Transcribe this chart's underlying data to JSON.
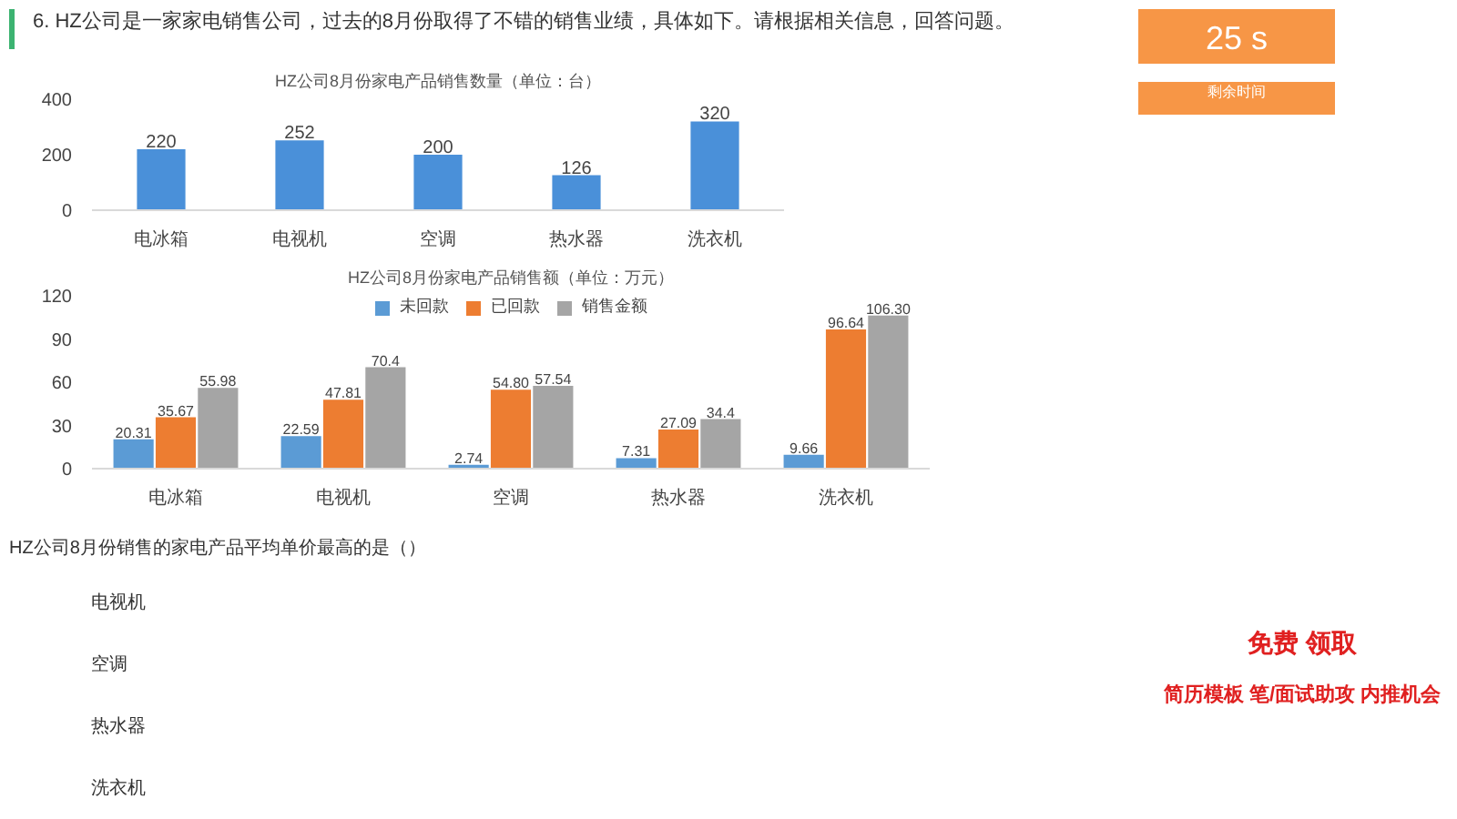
{
  "chart_data": [
    {
      "type": "bar",
      "title": "HZ公司8月份家电产品销售数量（单位：台）",
      "categories": [
        "电冰箱",
        "电视机",
        "空调",
        "热水器",
        "洗衣机"
      ],
      "values": [
        220,
        252,
        200,
        126,
        320
      ],
      "color": "#4a90d9",
      "ylim": [
        0,
        400
      ],
      "yticks": [
        0,
        200,
        400
      ],
      "grid": false,
      "data_labels": true,
      "annotations": [
        "6. HZ公司是一家家电销售公司，过去的8月份取得了不错的销售业绩，具体如下。请根据相关信息，回答问题。"
      ]
    },
    {
      "type": "bar",
      "title": "HZ公司8月份家电产品销售额（单位：万元）",
      "categories": [
        "电冰箱",
        "电视机",
        "空调",
        "热水器",
        "洗衣机"
      ],
      "ylim": [
        0,
        120
      ],
      "yticks": [
        0,
        30,
        60,
        90,
        120
      ],
      "grid": false,
      "legend": "top",
      "series": [
        {
          "name": "未回款",
          "color": "#5b9bd5",
          "values": [
            20.31,
            22.59,
            2.74,
            7.31,
            9.66
          ],
          "value_labels": [
            "20.31",
            "22.59",
            "2.74",
            "7.31",
            "9.66"
          ]
        },
        {
          "name": "已回款",
          "color": "#ed7d31",
          "values": [
            35.67,
            47.81,
            54.8,
            27.09,
            96.64
          ],
          "value_labels": [
            "35.67",
            "47.81",
            "54.80",
            "27.09",
            "96.64"
          ]
        },
        {
          "name": "销售金额",
          "color": "#a5a5a5",
          "values": [
            55.98,
            70.4,
            57.54,
            34.4,
            106.3
          ],
          "value_labels": [
            "55.98",
            "70.4",
            "57.54",
            "34.4",
            "106.30"
          ]
        }
      ],
      "annotations": [
        "HZ公司8月份销售的家电产品平均单价最高的是（）",
        "电视机",
        "空调",
        "热水器",
        "洗衣机",
        "25 s",
        "剩余时间",
        "免费 领取",
        "简历模板  笔/面试助攻  内推机会"
      ]
    }
  ]
}
